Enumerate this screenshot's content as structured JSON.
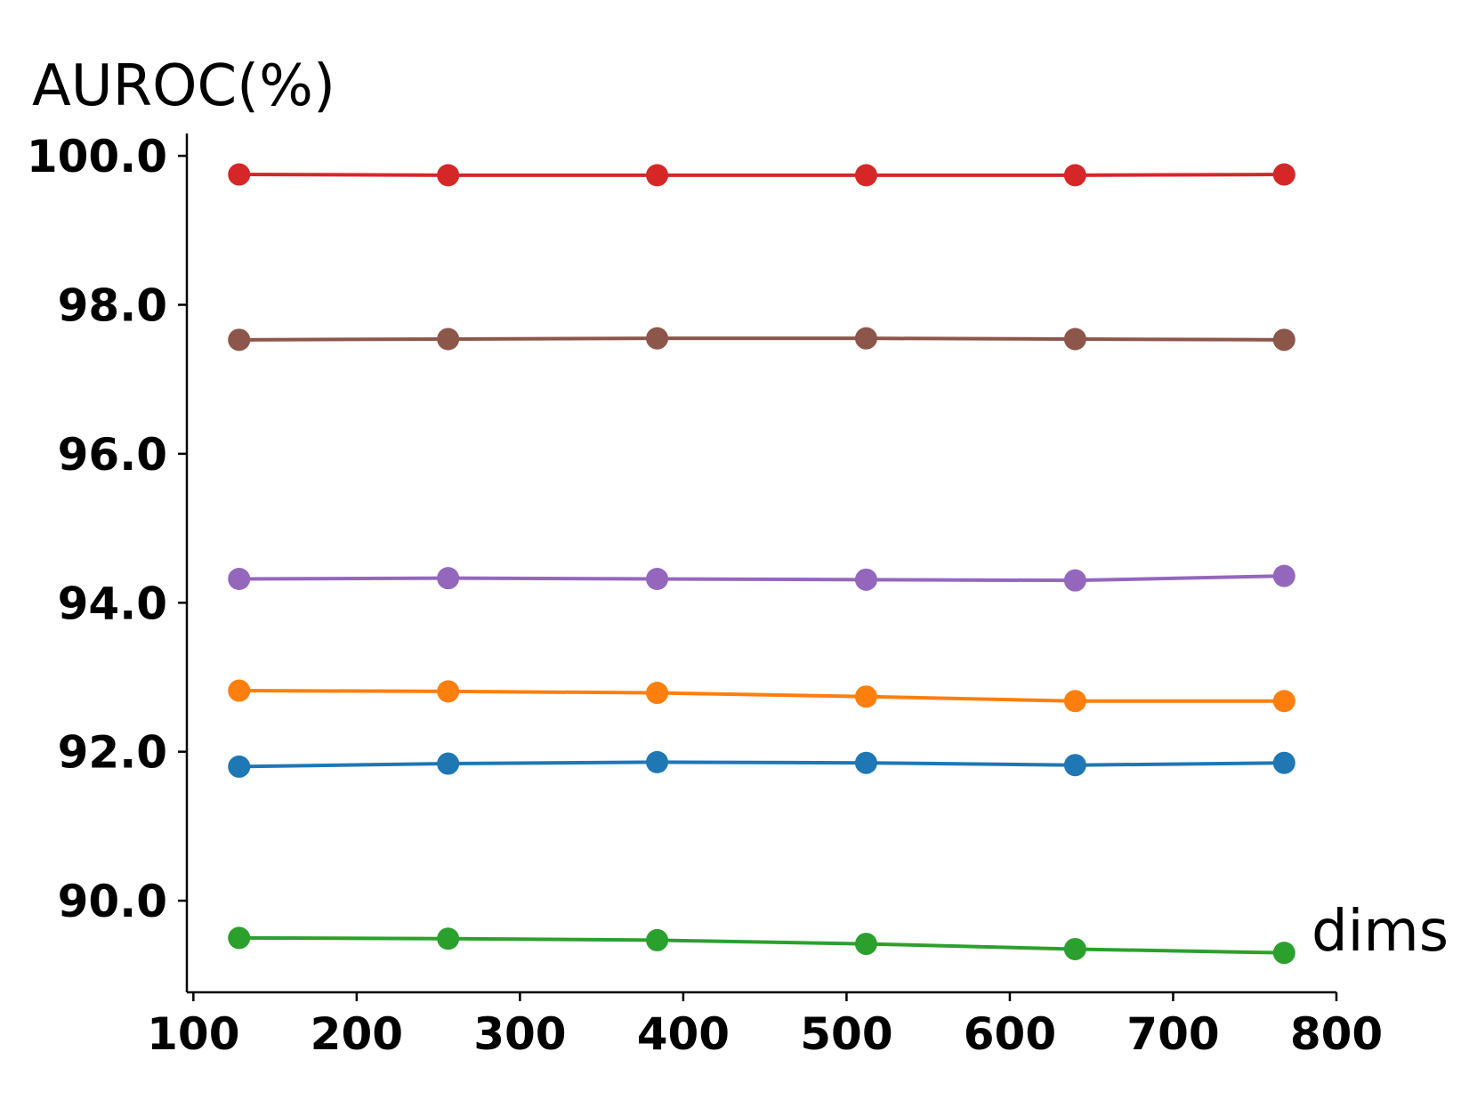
{
  "chart_data": {
    "type": "line",
    "title": "",
    "ylabel": "AUROC(%)",
    "xlabel": "dims",
    "xlim": [
      96,
      800
    ],
    "ylim": [
      88.77,
      100.3
    ],
    "xticks": [
      100,
      200,
      300,
      400,
      500,
      600,
      700,
      800
    ],
    "yticks": [
      90.0,
      92.0,
      94.0,
      96.0,
      98.0,
      100.0
    ],
    "ytick_format": "1 decimal",
    "grid": false,
    "legend": "none",
    "x": [
      128,
      256,
      384,
      512,
      640,
      768
    ],
    "series": [
      {
        "color": "#d62728",
        "values": [
          99.75,
          99.74,
          99.74,
          99.74,
          99.74,
          99.75
        ]
      },
      {
        "color": "#8c564b",
        "values": [
          97.53,
          97.54,
          97.55,
          97.55,
          97.54,
          97.53
        ]
      },
      {
        "color": "#9467bd",
        "values": [
          94.32,
          94.33,
          94.32,
          94.31,
          94.3,
          94.36
        ]
      },
      {
        "color": "#ff7f0e",
        "values": [
          92.82,
          92.81,
          92.79,
          92.74,
          92.68,
          92.68
        ]
      },
      {
        "color": "#1f77b4",
        "values": [
          91.8,
          91.84,
          91.86,
          91.85,
          91.82,
          91.85
        ]
      },
      {
        "color": "#2ca02c",
        "values": [
          89.5,
          89.49,
          89.47,
          89.42,
          89.35,
          89.3
        ]
      }
    ]
  }
}
